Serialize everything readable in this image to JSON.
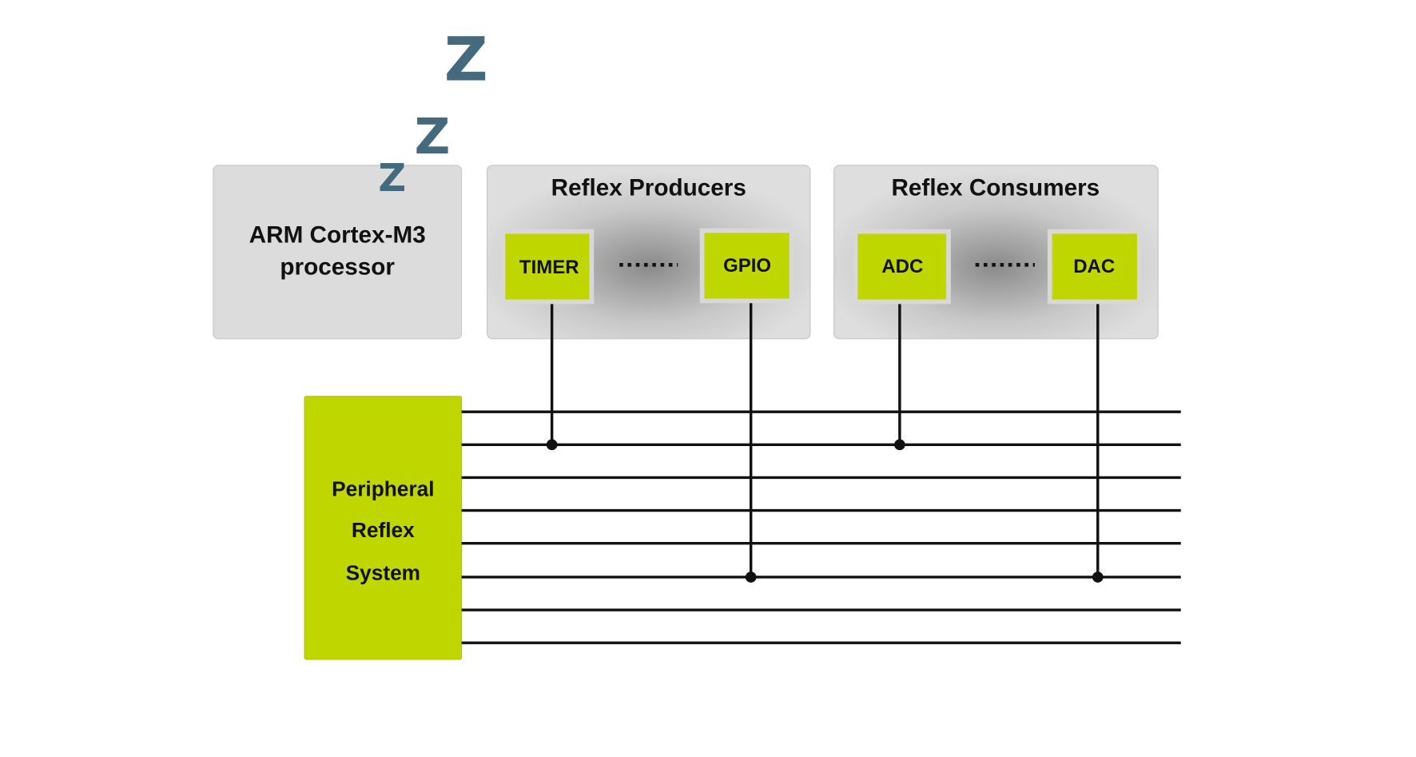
{
  "sleep": [
    "Z",
    "Z",
    "Z"
  ],
  "processor": {
    "lines": [
      "ARM Cortex-M3",
      "processor"
    ]
  },
  "producers": {
    "title": "Reflex Producers",
    "items": [
      "TIMER",
      "GPIO"
    ]
  },
  "consumers": {
    "title": "Reflex Consumers",
    "items": [
      "ADC",
      "DAC"
    ]
  },
  "prs": {
    "lines": [
      "Peripheral",
      "Reflex",
      "System"
    ]
  }
}
